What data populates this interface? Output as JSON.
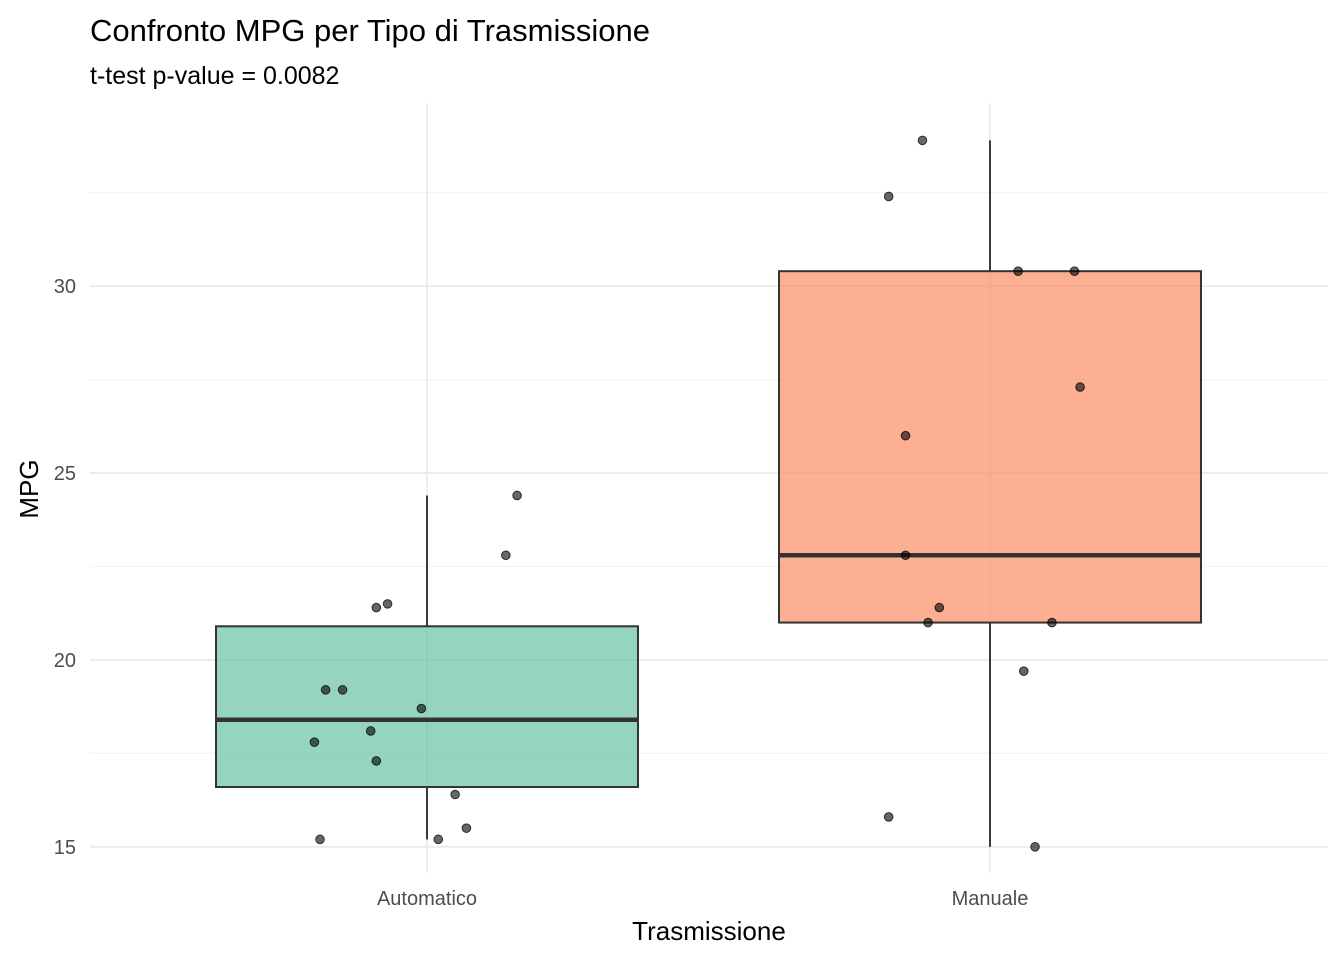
{
  "chart_data": {
    "type": "boxplot",
    "title": "Confronto MPG per Tipo di Trasmissione",
    "subtitle": "t-test p-value = 0.0082",
    "xlabel": "Trasmissione",
    "ylabel": "MPG",
    "categories": [
      "Automatico",
      "Manuale"
    ],
    "ylim": [
      14.3,
      34.9
    ],
    "yticks": [
      15,
      20,
      25,
      30
    ],
    "grid": true,
    "legend": "none",
    "boxes": [
      {
        "category": "Automatico",
        "color": "#66c2a5",
        "whisker_low": 15.2,
        "q1": 16.6,
        "median": 18.4,
        "q3": 20.9,
        "whisker_high": 24.4
      },
      {
        "category": "Manuale",
        "color": "#fc8d62",
        "whisker_low": 15.0,
        "q1": 21.0,
        "median": 22.8,
        "q3": 30.4,
        "whisker_high": 33.9
      }
    ],
    "points": [
      {
        "category": "Automatico",
        "jitter": -0.19,
        "y": 15.2
      },
      {
        "category": "Automatico",
        "jitter": -0.2,
        "y": 17.8
      },
      {
        "category": "Automatico",
        "jitter": -0.18,
        "y": 19.2
      },
      {
        "category": "Automatico",
        "jitter": -0.15,
        "y": 19.2
      },
      {
        "category": "Automatico",
        "jitter": -0.1,
        "y": 18.1
      },
      {
        "category": "Automatico",
        "jitter": -0.09,
        "y": 17.3
      },
      {
        "category": "Automatico",
        "jitter": -0.09,
        "y": 21.4
      },
      {
        "category": "Automatico",
        "jitter": -0.07,
        "y": 21.5
      },
      {
        "category": "Automatico",
        "jitter": -0.01,
        "y": 18.7
      },
      {
        "category": "Automatico",
        "jitter": 0.02,
        "y": 15.2
      },
      {
        "category": "Automatico",
        "jitter": 0.05,
        "y": 16.4
      },
      {
        "category": "Automatico",
        "jitter": 0.07,
        "y": 15.5
      },
      {
        "category": "Automatico",
        "jitter": 0.14,
        "y": 22.8
      },
      {
        "category": "Automatico",
        "jitter": 0.16,
        "y": 24.4
      },
      {
        "category": "Manuale",
        "jitter": -0.18,
        "y": 32.4
      },
      {
        "category": "Manuale",
        "jitter": -0.18,
        "y": 15.8
      },
      {
        "category": "Manuale",
        "jitter": -0.15,
        "y": 22.8
      },
      {
        "category": "Manuale",
        "jitter": -0.15,
        "y": 26.0
      },
      {
        "category": "Manuale",
        "jitter": -0.12,
        "y": 33.9
      },
      {
        "category": "Manuale",
        "jitter": -0.11,
        "y": 21.0
      },
      {
        "category": "Manuale",
        "jitter": -0.09,
        "y": 21.4
      },
      {
        "category": "Manuale",
        "jitter": 0.05,
        "y": 30.4
      },
      {
        "category": "Manuale",
        "jitter": 0.06,
        "y": 19.7
      },
      {
        "category": "Manuale",
        "jitter": 0.08,
        "y": 15.0
      },
      {
        "category": "Manuale",
        "jitter": 0.11,
        "y": 21.0
      },
      {
        "category": "Manuale",
        "jitter": 0.15,
        "y": 30.4
      },
      {
        "category": "Manuale",
        "jitter": 0.16,
        "y": 27.3
      }
    ]
  }
}
